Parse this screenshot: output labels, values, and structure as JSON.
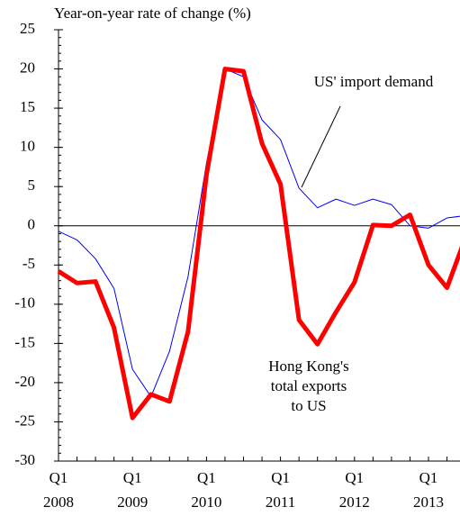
{
  "chart_data": {
    "type": "line",
    "y_label": "Year-on-year rate of change (%)",
    "categories": [
      [
        "Q1",
        "2008"
      ],
      null,
      null,
      null,
      [
        "Q1",
        "2009"
      ],
      null,
      null,
      null,
      [
        "Q1",
        "2010"
      ],
      null,
      null,
      null,
      [
        "Q1",
        "2011"
      ],
      null,
      null,
      null,
      [
        "Q1",
        "2012"
      ],
      null,
      null,
      null,
      [
        "Q1",
        "2013"
      ],
      null,
      null
    ],
    "series": [
      {
        "name": "US' import demand",
        "color": "#0000ff",
        "width": 1,
        "values": [
          -0.7,
          -1.8,
          -4.2,
          -8,
          -18.3,
          -21.8,
          -16,
          -6.5,
          8,
          20,
          19,
          13.5,
          11,
          4.8,
          2.3,
          3.4,
          2.6,
          3.4,
          2.7,
          0,
          -0.3,
          1,
          1.3
        ]
      },
      {
        "name": "Hong Kong's total exports to US",
        "color": "#ff0000",
        "width": 5,
        "values": [
          -5.8,
          -7.3,
          -7.1,
          -13,
          -24.5,
          -21.5,
          -22.4,
          -13.5,
          6.5,
          20,
          19.7,
          10.5,
          5.3,
          -12,
          -15.1,
          -11,
          -7.2,
          0.1,
          0,
          1.4,
          -5,
          -7.9,
          -1.5
        ]
      }
    ],
    "annotations": [
      {
        "lines": [
          "US' import demand"
        ]
      },
      {
        "lines": [
          "Hong Kong's",
          "total exports",
          "to US"
        ]
      }
    ],
    "ylim": [
      -30,
      25
    ],
    "yticks": [
      -30,
      -25,
      -20,
      -15,
      -10,
      -5,
      0,
      5,
      10,
      15,
      20,
      25
    ]
  }
}
